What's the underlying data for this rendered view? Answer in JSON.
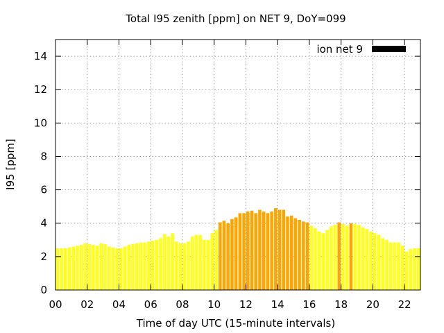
{
  "chart_data": {
    "type": "bar",
    "title": "Total I95 zenith [ppm] on NET 9, DoY=099",
    "xlabel": "Time of day UTC (15-minute intervals)",
    "ylabel": "I95 [ppm]",
    "xlim": [
      0,
      23
    ],
    "ylim": [
      0,
      15
    ],
    "x_ticks": [
      "00",
      "02",
      "04",
      "06",
      "08",
      "10",
      "12",
      "14",
      "16",
      "18",
      "20",
      "22"
    ],
    "x_tick_values": [
      0,
      2,
      4,
      6,
      8,
      10,
      12,
      14,
      16,
      18,
      20,
      22
    ],
    "y_ticks": [
      0,
      2,
      4,
      6,
      8,
      10,
      12,
      14
    ],
    "grid": true,
    "legend": {
      "label": "ion net 9",
      "color": "#000000",
      "placement": "top-right"
    },
    "bar_interval_hours": 0.25,
    "colors": {
      "yellow": "#ffff1a",
      "orange": "#ffa500"
    },
    "series": [
      {
        "name": "ion net 9",
        "x": [
          0.0,
          0.25,
          0.5,
          0.75,
          1.0,
          1.25,
          1.5,
          1.75,
          2.0,
          2.25,
          2.5,
          2.75,
          3.0,
          3.25,
          3.5,
          3.75,
          4.0,
          4.25,
          4.5,
          4.75,
          5.0,
          5.25,
          5.5,
          5.75,
          6.0,
          6.25,
          6.5,
          6.75,
          7.0,
          7.25,
          7.5,
          7.75,
          8.0,
          8.25,
          8.5,
          8.75,
          9.0,
          9.25,
          9.5,
          9.75,
          10.0,
          10.25,
          10.5,
          10.75,
          11.0,
          11.25,
          11.5,
          11.75,
          12.0,
          12.25,
          12.5,
          12.75,
          13.0,
          13.25,
          13.5,
          13.75,
          14.0,
          14.25,
          14.5,
          14.75,
          15.0,
          15.25,
          15.5,
          15.75,
          16.0,
          16.25,
          16.5,
          16.75,
          17.0,
          17.25,
          17.5,
          17.75,
          18.0,
          18.25,
          18.5,
          18.75,
          19.0,
          19.25,
          19.5,
          19.75,
          20.0,
          20.25,
          20.5,
          20.75,
          21.0,
          21.25,
          21.5,
          21.75,
          22.0,
          22.25,
          22.5,
          22.75
        ],
        "values": [
          2.5,
          2.5,
          2.5,
          2.55,
          2.6,
          2.65,
          2.7,
          2.8,
          2.75,
          2.7,
          2.65,
          2.8,
          2.75,
          2.6,
          2.55,
          2.5,
          2.5,
          2.6,
          2.7,
          2.75,
          2.8,
          2.85,
          2.85,
          2.9,
          2.95,
          3.0,
          3.1,
          3.35,
          3.2,
          3.4,
          2.9,
          2.8,
          2.8,
          2.9,
          3.2,
          3.3,
          3.3,
          3.0,
          3.0,
          3.4,
          3.6,
          4.05,
          4.15,
          4.0,
          4.25,
          4.35,
          4.6,
          4.6,
          4.7,
          4.75,
          4.6,
          4.8,
          4.7,
          4.6,
          4.7,
          4.9,
          4.8,
          4.8,
          4.4,
          4.45,
          4.3,
          4.2,
          4.1,
          4.05,
          3.85,
          3.7,
          3.5,
          3.4,
          3.6,
          3.8,
          3.9,
          4.05,
          3.95,
          3.85,
          4.0,
          3.95,
          3.9,
          3.75,
          3.65,
          3.5,
          3.4,
          3.3,
          3.1,
          3.0,
          2.85,
          2.85,
          2.85,
          2.65,
          2.3,
          2.45,
          2.5,
          2.5
        ],
        "colors": [
          "yellow",
          "yellow",
          "yellow",
          "yellow",
          "yellow",
          "yellow",
          "yellow",
          "yellow",
          "yellow",
          "yellow",
          "yellow",
          "yellow",
          "yellow",
          "yellow",
          "yellow",
          "yellow",
          "yellow",
          "yellow",
          "yellow",
          "yellow",
          "yellow",
          "yellow",
          "yellow",
          "yellow",
          "yellow",
          "yellow",
          "yellow",
          "yellow",
          "yellow",
          "yellow",
          "yellow",
          "yellow",
          "yellow",
          "yellow",
          "yellow",
          "yellow",
          "yellow",
          "yellow",
          "yellow",
          "yellow",
          "yellow",
          "orange",
          "orange",
          "orange",
          "orange",
          "orange",
          "orange",
          "orange",
          "orange",
          "orange",
          "orange",
          "orange",
          "orange",
          "orange",
          "orange",
          "orange",
          "orange",
          "orange",
          "orange",
          "orange",
          "orange",
          "orange",
          "orange",
          "orange",
          "yellow",
          "yellow",
          "yellow",
          "yellow",
          "yellow",
          "yellow",
          "yellow",
          "orange",
          "yellow",
          "yellow",
          "orange",
          "yellow",
          "yellow",
          "yellow",
          "yellow",
          "yellow",
          "yellow",
          "yellow",
          "yellow",
          "yellow",
          "yellow",
          "yellow",
          "yellow",
          "yellow",
          "yellow",
          "yellow",
          "yellow",
          "yellow"
        ]
      }
    ]
  }
}
